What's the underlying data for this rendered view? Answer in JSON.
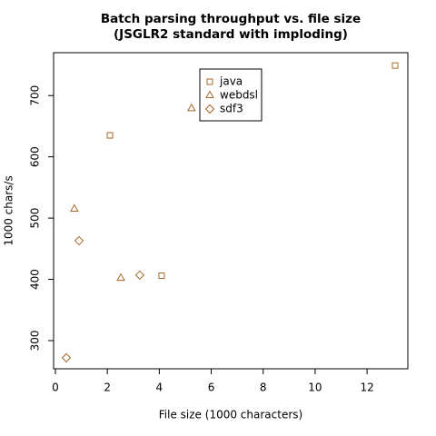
{
  "chart_data": {
    "type": "scatter",
    "title": "Batch parsing throughput vs. file size",
    "subtitle": "(JSGLR2 standard with imploding)",
    "x_label": "File size (1000 characters)",
    "y_label": "1000 chars/s",
    "xlim": [
      -0.07,
      13.57
    ],
    "ylim": [
      254,
      770
    ],
    "xticks": [
      0,
      2,
      4,
      6,
      8,
      10,
      12
    ],
    "yticks": [
      300,
      400,
      500,
      600,
      700
    ],
    "legend": "top-center",
    "series": [
      {
        "name": "java",
        "color": "#a5682a",
        "marker": "square",
        "x": [
          2.1,
          4.09,
          13.08
        ],
        "values": [
          635,
          406,
          749
        ]
      },
      {
        "name": "webdsl",
        "color": "#a5682a",
        "marker": "triangle",
        "x": [
          0.73,
          2.52,
          5.24
        ],
        "values": [
          515,
          402,
          679
        ]
      },
      {
        "name": "sdf3",
        "color": "#a5682a",
        "marker": "diamond",
        "x": [
          0.42,
          0.91,
          3.25
        ],
        "values": [
          272,
          463,
          407
        ]
      }
    ]
  }
}
